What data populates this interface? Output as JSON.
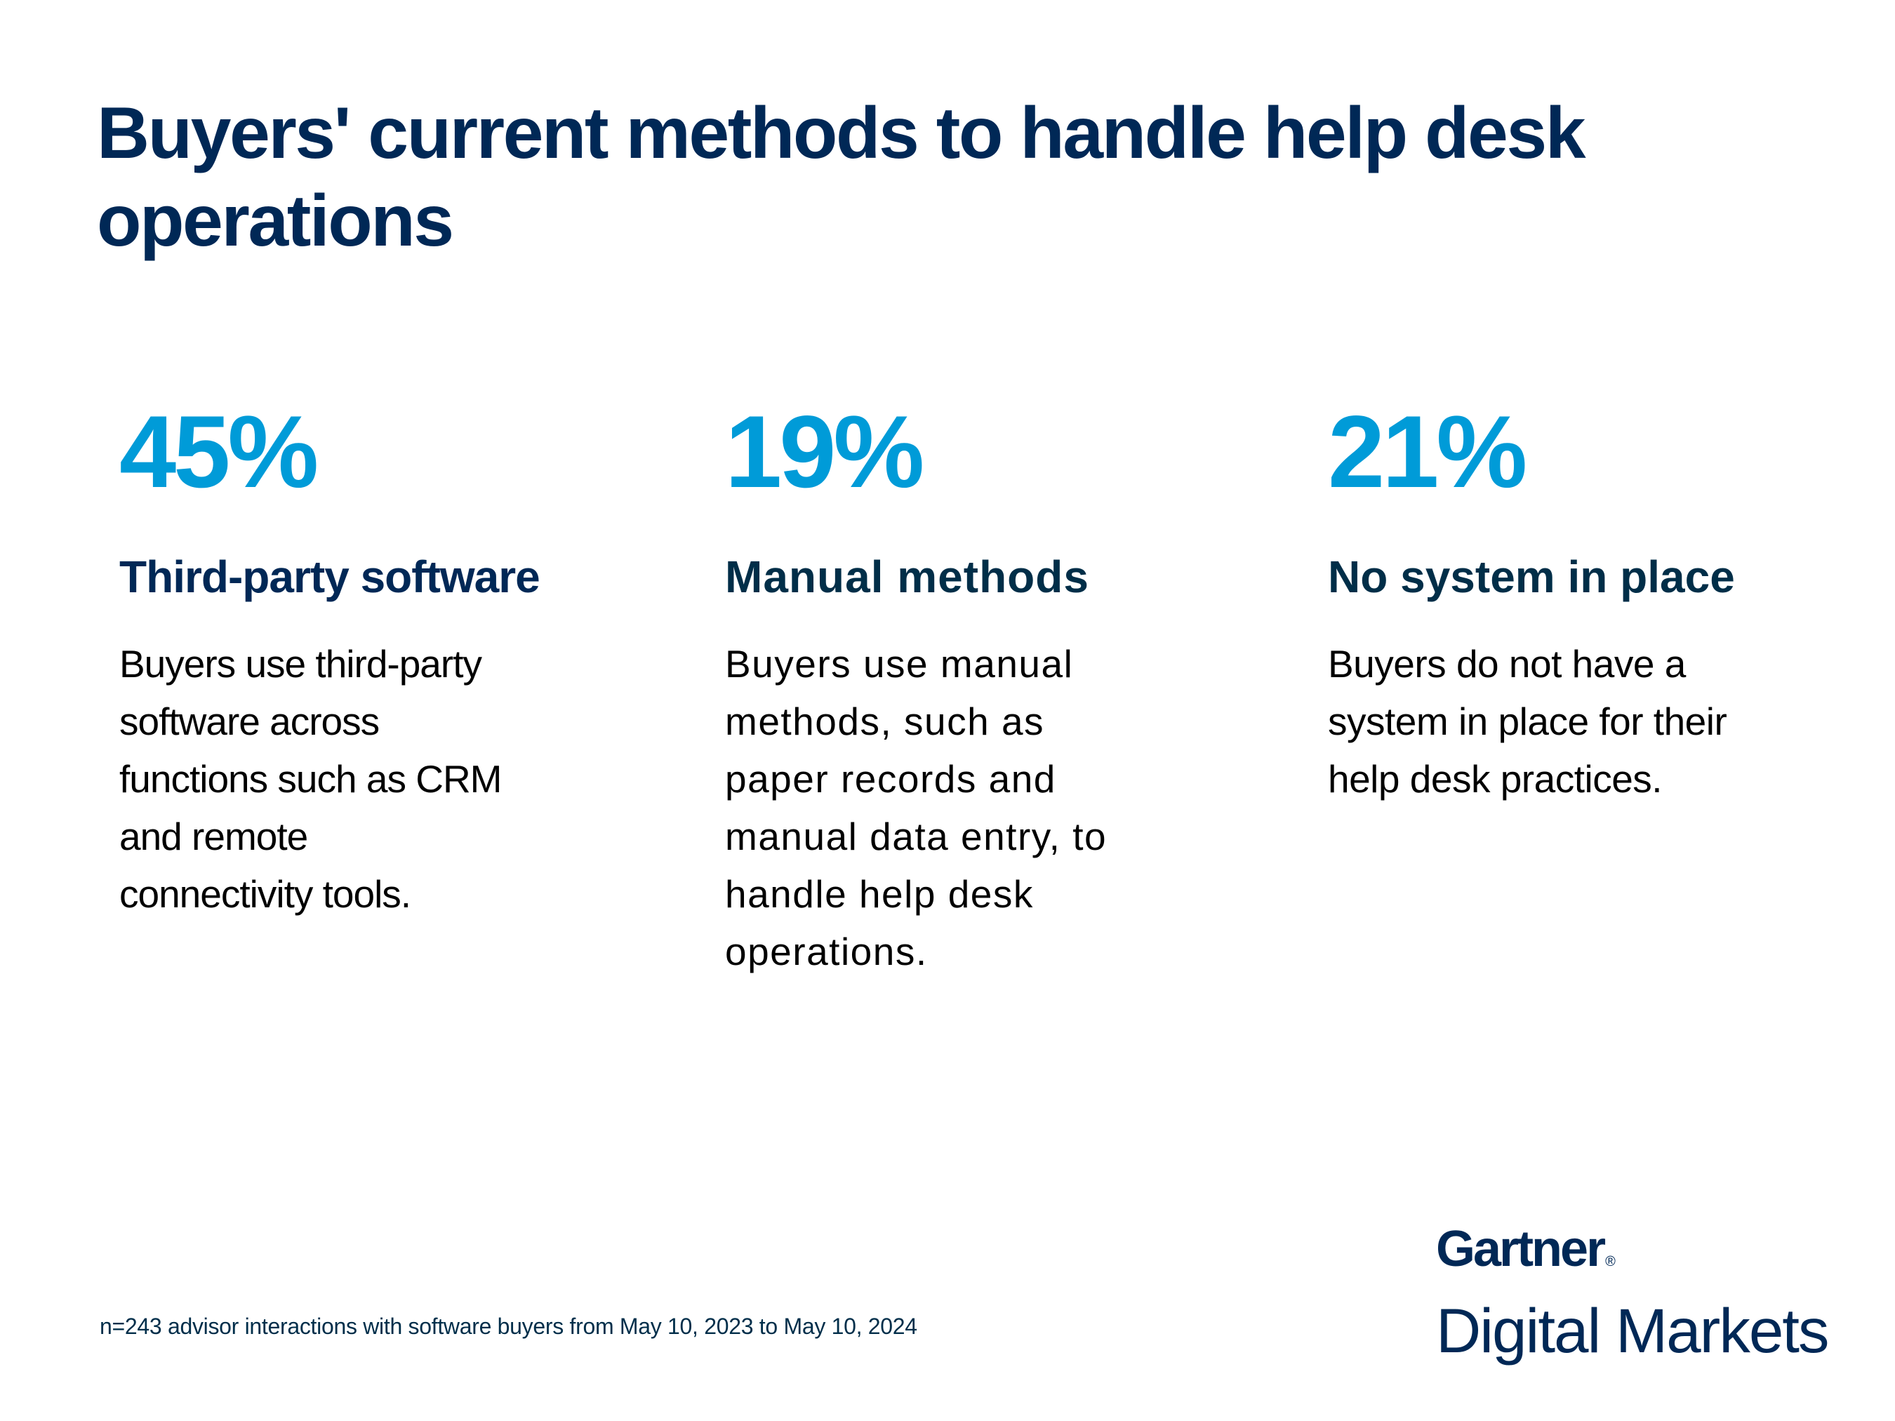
{
  "title": "Buyers' current methods to handle help desk operations",
  "colors": {
    "title": "#002856",
    "stat_blue": "#009bd8",
    "heading_navy": "#002856",
    "heading_teal_navy": "#002e48",
    "body_text": "#000000",
    "footnote": "#002e4a",
    "background": "#ffffff"
  },
  "stats": [
    {
      "value": "45%",
      "heading": "Third-party software",
      "body_lines": [
        "Buyers use third-party",
        "software across",
        "functions such as CRM",
        "and remote",
        "connectivity tools."
      ]
    },
    {
      "value": "19%",
      "heading": "Manual methods",
      "body_lines": [
        "Buyers use manual",
        "methods, such as",
        "paper records and",
        "manual data entry, to",
        "handle help desk",
        "operations."
      ]
    },
    {
      "value": "21%",
      "heading": "No system in place",
      "body_lines": [
        "Buyers do not have a",
        "system in place for their",
        "help desk practices."
      ]
    }
  ],
  "chart_data": {
    "type": "table",
    "title": "Buyers' current methods to handle help desk operations",
    "categories": [
      "Third-party software",
      "Manual methods",
      "No system in place"
    ],
    "values": [
      45,
      19,
      21
    ],
    "unit": "%",
    "note": "n=243 advisor interactions with software buyers from May 10, 2023 to May 10, 2024"
  },
  "footnote": "n=243 advisor interactions with software buyers from May 10, 2023 to May 10, 2024",
  "logo": {
    "brand": "Gartner",
    "registered_mark": "®",
    "sub": "Digital Markets"
  }
}
